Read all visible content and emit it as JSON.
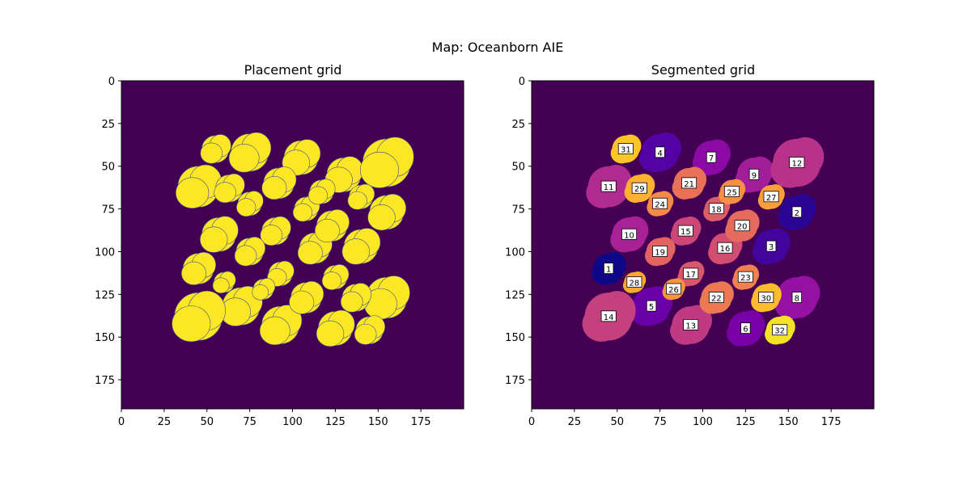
{
  "figure": {
    "title": "Map: Oceanborn AIE"
  },
  "colors": {
    "background": "#440154",
    "placement_fill": "#fde725",
    "placement_edge": "#3b528b",
    "label_box": "#ffffff",
    "label_edge": "#000000"
  },
  "chart_data": [
    {
      "type": "heatmap",
      "title": "Placement grid",
      "xlim": [
        0,
        200
      ],
      "ylim": [
        192,
        0
      ],
      "x_ticks": [
        0,
        25,
        50,
        75,
        100,
        125,
        150,
        175
      ],
      "y_ticks": [
        0,
        25,
        50,
        75,
        100,
        125,
        150,
        175
      ],
      "xlabel": "",
      "ylabel": "",
      "colormap": "viridis",
      "description_values": "binary grid: 1 = placeable (yellow), 0 = not placeable (purple)",
      "regions": [
        {
          "id": 1,
          "x": 45,
          "y": 110,
          "r": 9
        },
        {
          "id": 2,
          "x": 155,
          "y": 77,
          "r": 10
        },
        {
          "id": 3,
          "x": 140,
          "y": 97,
          "r": 10
        },
        {
          "id": 4,
          "x": 75,
          "y": 42,
          "r": 11
        },
        {
          "id": 5,
          "x": 70,
          "y": 132,
          "r": 11
        },
        {
          "id": 6,
          "x": 125,
          "y": 145,
          "r": 10
        },
        {
          "id": 7,
          "x": 105,
          "y": 45,
          "r": 10
        },
        {
          "id": 8,
          "x": 155,
          "y": 127,
          "r": 12
        },
        {
          "id": 9,
          "x": 130,
          "y": 55,
          "r": 10
        },
        {
          "id": 10,
          "x": 57,
          "y": 90,
          "r": 10
        },
        {
          "id": 11,
          "x": 45,
          "y": 62,
          "r": 12
        },
        {
          "id": 12,
          "x": 155,
          "y": 48,
          "r": 14
        },
        {
          "id": 13,
          "x": 93,
          "y": 143,
          "r": 11
        },
        {
          "id": 14,
          "x": 45,
          "y": 138,
          "r": 14
        },
        {
          "id": 15,
          "x": 90,
          "y": 88,
          "r": 8
        },
        {
          "id": 16,
          "x": 113,
          "y": 98,
          "r": 9
        },
        {
          "id": 17,
          "x": 93,
          "y": 113,
          "r": 7
        },
        {
          "id": 18,
          "x": 108,
          "y": 75,
          "r": 7
        },
        {
          "id": 19,
          "x": 75,
          "y": 100,
          "r": 8
        },
        {
          "id": 20,
          "x": 123,
          "y": 85,
          "r": 9
        },
        {
          "id": 21,
          "x": 92,
          "y": 60,
          "r": 9
        },
        {
          "id": 22,
          "x": 108,
          "y": 127,
          "r": 9
        },
        {
          "id": 23,
          "x": 125,
          "y": 115,
          "r": 7
        },
        {
          "id": 24,
          "x": 75,
          "y": 72,
          "r": 7
        },
        {
          "id": 25,
          "x": 117,
          "y": 65,
          "r": 7
        },
        {
          "id": 26,
          "x": 83,
          "y": 122,
          "r": 6
        },
        {
          "id": 27,
          "x": 140,
          "y": 68,
          "r": 7
        },
        {
          "id": 28,
          "x": 60,
          "y": 118,
          "r": 6
        },
        {
          "id": 29,
          "x": 63,
          "y": 63,
          "r": 8
        },
        {
          "id": 30,
          "x": 137,
          "y": 127,
          "r": 8
        },
        {
          "id": 31,
          "x": 55,
          "y": 40,
          "r": 8
        },
        {
          "id": 32,
          "x": 145,
          "y": 146,
          "r": 8
        }
      ]
    },
    {
      "type": "heatmap",
      "title": "Segmented grid",
      "xlim": [
        0,
        200
      ],
      "ylim": [
        192,
        0
      ],
      "x_ticks": [
        0,
        25,
        50,
        75,
        100,
        125,
        150,
        175
      ],
      "y_ticks": [
        0,
        25,
        50,
        75,
        100,
        125,
        150,
        175
      ],
      "xlabel": "",
      "ylabel": "",
      "colormap": "plasma",
      "region_colors": {
        "1": "#0d0887",
        "2": "#2a0593",
        "3": "#41049d",
        "4": "#5402a3",
        "5": "#6900a8",
        "6": "#7801a8",
        "7": "#8b0aa5",
        "8": "#9511a1",
        "9": "#a21d9a",
        "10": "#a82296",
        "11": "#b12a90",
        "12": "#b83289",
        "13": "#c03a83",
        "14": "#c5407e",
        "15": "#cc4778",
        "16": "#d14e72",
        "17": "#d8576b",
        "18": "#dc5e66",
        "19": "#e16462",
        "20": "#e56b5d",
        "21": "#e97158",
        "22": "#ed7953",
        "23": "#f0804e",
        "24": "#f3894a",
        "25": "#f58f44",
        "26": "#f89540",
        "27": "#fa9e3b",
        "28": "#fca636",
        "29": "#fdb130",
        "30": "#fdbc2c",
        "31": "#fcc527",
        "32": "#f3e225"
      }
    }
  ],
  "region_labels": [
    "1",
    "2",
    "3",
    "4",
    "5",
    "6",
    "7",
    "8",
    "9",
    "10",
    "11",
    "12",
    "13",
    "14",
    "15",
    "16",
    "17",
    "18",
    "19",
    "20",
    "21",
    "22",
    "23",
    "24",
    "25",
    "26",
    "27",
    "28",
    "29",
    "30",
    "31",
    "32"
  ]
}
